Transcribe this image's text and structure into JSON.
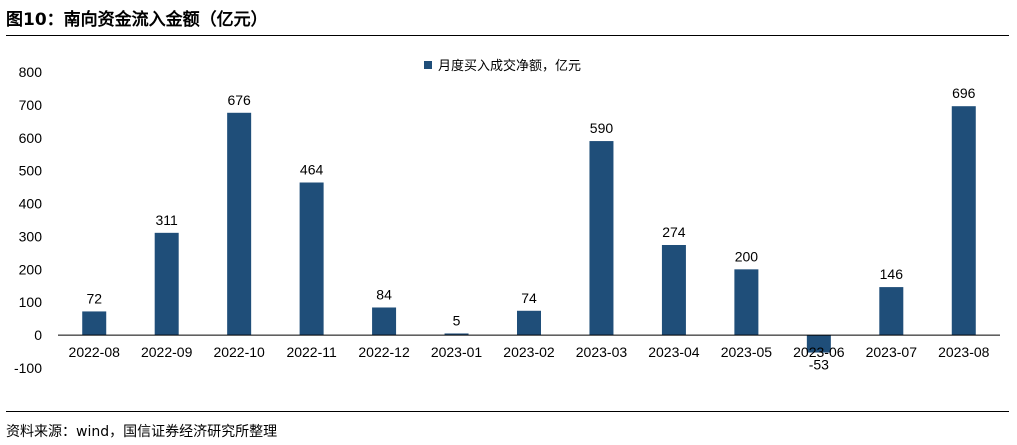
{
  "figure": {
    "title": "图10：南向资金流入金额（亿元）",
    "source": "资料来源：wind，国信证券经济研究所整理"
  },
  "colors": {
    "bar": "#1f4e79",
    "axis": "#000000",
    "text": "#000000"
  },
  "chart_data": {
    "type": "bar",
    "title": "",
    "xlabel": "",
    "ylabel": "",
    "categories": [
      "2022-08",
      "2022-09",
      "2022-10",
      "2022-11",
      "2022-12",
      "2023-01",
      "2023-02",
      "2023-03",
      "2023-04",
      "2023-05",
      "2023-06",
      "2023-07",
      "2023-08"
    ],
    "series": [
      {
        "name": "月度买入成交净额，亿元",
        "values": [
          72,
          311,
          676,
          464,
          84,
          5,
          74,
          590,
          274,
          200,
          -53,
          146,
          696
        ]
      }
    ],
    "ylim": [
      -100,
      800
    ],
    "yticks": [
      -100,
      0,
      100,
      200,
      300,
      400,
      500,
      600,
      700,
      800
    ],
    "data_labels": true,
    "grid": false,
    "legend": "top-center"
  }
}
